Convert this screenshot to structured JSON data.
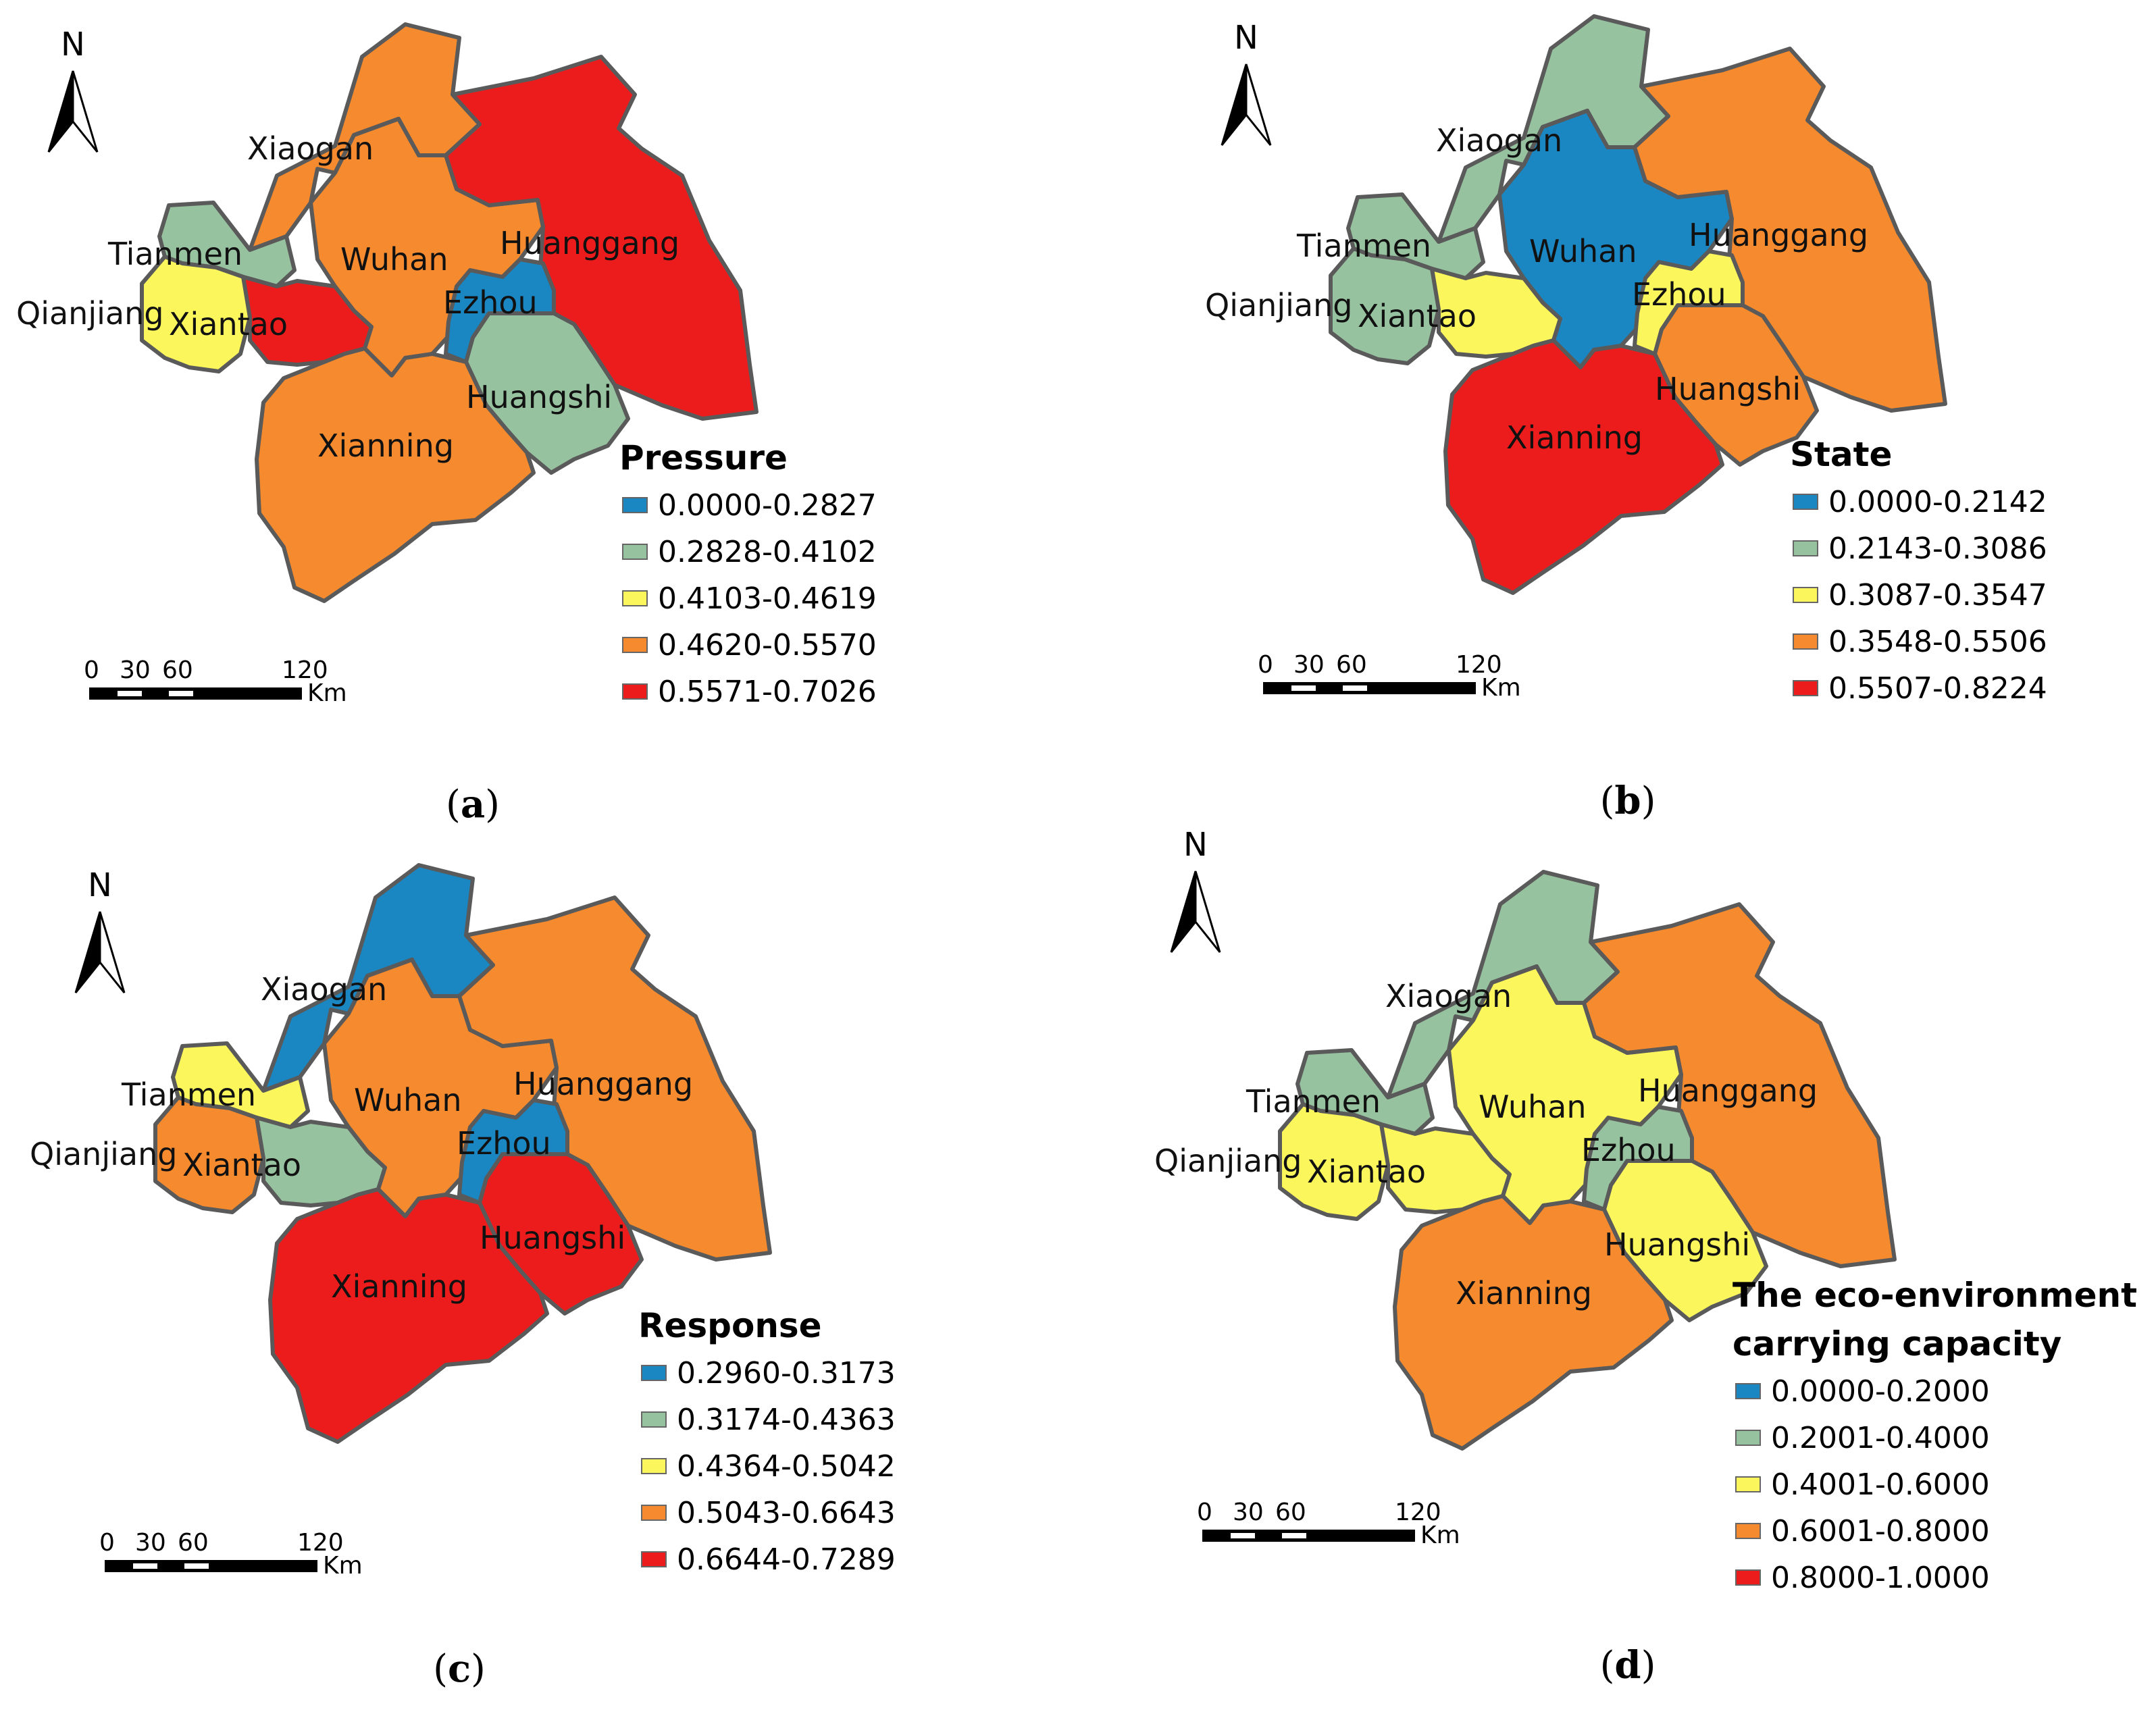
{
  "colors": {
    "class1": "#1a86c2",
    "class2": "#97c29f",
    "class3": "#fbf65c",
    "class4": "#f58a2e",
    "class5": "#ec1c1c"
  },
  "panels": [
    {
      "caption_open": "(",
      "caption_letter": "a",
      "caption_close": ")",
      "legend_title_lines": [
        "Pressure"
      ],
      "legend_items": [
        "0.0000-0.2827",
        "0.2828-0.4102",
        "0.4103-0.4619",
        "0.4620-0.5570",
        "0.5571-0.7026"
      ],
      "north_label": "N",
      "scale": {
        "ticks": [
          "0",
          "30",
          "60",
          "120"
        ],
        "unit": "Km"
      },
      "cities": {
        "Xiaogan": {
          "label": "Xiaogan",
          "class": 4
        },
        "Tianmen": {
          "label": "Tianmen",
          "class": 2
        },
        "Qianjiang": {
          "label": "Qianjiang",
          "class": 3
        },
        "Xiantao": {
          "label": "Xiantao",
          "class": 5
        },
        "Wuhan": {
          "label": "Wuhan",
          "class": 4
        },
        "Ezhou": {
          "label": "Ezhou",
          "class": 1
        },
        "Huanggang": {
          "label": "Huanggang",
          "class": 5
        },
        "Huangshi": {
          "label": "Huangshi",
          "class": 2
        },
        "Xianning": {
          "label": "Xianning",
          "class": 4
        }
      }
    },
    {
      "caption_open": "(",
      "caption_letter": "b",
      "caption_close": ")",
      "legend_title_lines": [
        "State"
      ],
      "legend_items": [
        "0.0000-0.2142",
        "0.2143-0.3086",
        "0.3087-0.3547",
        "0.3548-0.5506",
        "0.5507-0.8224"
      ],
      "north_label": "N",
      "scale": {
        "ticks": [
          "0",
          "30",
          "60",
          "120"
        ],
        "unit": "Km"
      },
      "cities": {
        "Xiaogan": {
          "label": "Xiaogan",
          "class": 2
        },
        "Tianmen": {
          "label": "Tianmen",
          "class": 2
        },
        "Qianjiang": {
          "label": "Qianjiang",
          "class": 2
        },
        "Xiantao": {
          "label": "Xiantao",
          "class": 3
        },
        "Wuhan": {
          "label": "Wuhan",
          "class": 1
        },
        "Ezhou": {
          "label": "Ezhou",
          "class": 3
        },
        "Huanggang": {
          "label": "Huanggang",
          "class": 4
        },
        "Huangshi": {
          "label": "Huangshi",
          "class": 4
        },
        "Xianning": {
          "label": "Xianning",
          "class": 5
        }
      }
    },
    {
      "caption_open": "(",
      "caption_letter": "c",
      "caption_close": ")",
      "legend_title_lines": [
        "Response"
      ],
      "legend_items": [
        "0.2960-0.3173",
        "0.3174-0.4363",
        "0.4364-0.5042",
        "0.5043-0.6643",
        "0.6644-0.7289"
      ],
      "north_label": "N",
      "scale": {
        "ticks": [
          "0",
          "30",
          "60",
          "120"
        ],
        "unit": "Km"
      },
      "cities": {
        "Xiaogan": {
          "label": "Xiaogan",
          "class": 1
        },
        "Tianmen": {
          "label": "Tianmen",
          "class": 3
        },
        "Qianjiang": {
          "label": "Qianjiang",
          "class": 4
        },
        "Xiantao": {
          "label": "Xiantao",
          "class": 2
        },
        "Wuhan": {
          "label": "Wuhan",
          "class": 4
        },
        "Ezhou": {
          "label": "Ezhou",
          "class": 1
        },
        "Huanggang": {
          "label": "Huanggang",
          "class": 4
        },
        "Huangshi": {
          "label": "Huangshi",
          "class": 5
        },
        "Xianning": {
          "label": "Xianning",
          "class": 5
        }
      }
    },
    {
      "caption_open": "(",
      "caption_letter": "d",
      "caption_close": ")",
      "legend_title_lines": [
        "The eco-environment",
        "carrying capacity"
      ],
      "legend_items": [
        "0.0000-0.2000",
        "0.2001-0.4000",
        "0.4001-0.6000",
        "0.6001-0.8000",
        "0.8000-1.0000"
      ],
      "north_label": "N",
      "scale": {
        "ticks": [
          "0",
          "30",
          "60",
          "120"
        ],
        "unit": "Km"
      },
      "cities": {
        "Xiaogan": {
          "label": "Xiaogan",
          "class": 2
        },
        "Tianmen": {
          "label": "Tianmen",
          "class": 2
        },
        "Qianjiang": {
          "label": "Qianjiang",
          "class": 3
        },
        "Xiantao": {
          "label": "Xiantao",
          "class": 3
        },
        "Wuhan": {
          "label": "Wuhan",
          "class": 3
        },
        "Ezhou": {
          "label": "Ezhou",
          "class": 2
        },
        "Huanggang": {
          "label": "Huanggang",
          "class": 4
        },
        "Huangshi": {
          "label": "Huangshi",
          "class": 3
        },
        "Xianning": {
          "label": "Xianning",
          "class": 4
        }
      }
    }
  ]
}
